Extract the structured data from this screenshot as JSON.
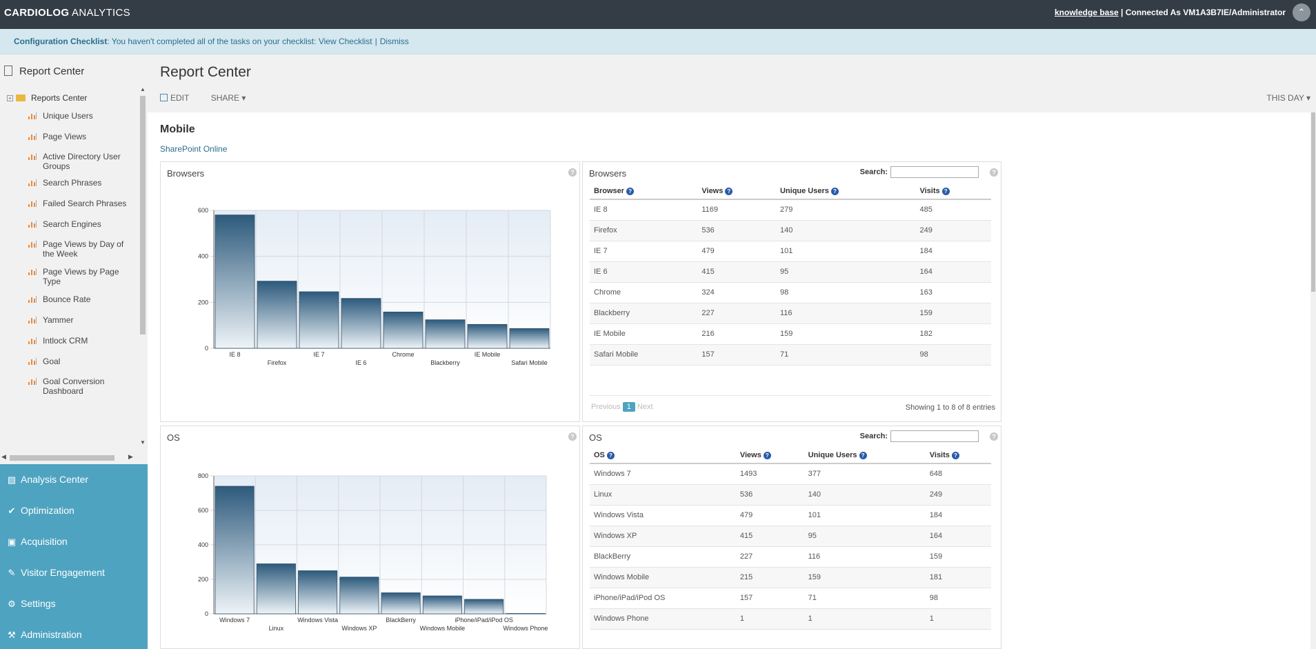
{
  "header": {
    "brand_bold": "CARDIOLOG",
    "brand_light": " ANALYTICS",
    "kb_link": "knowledge base",
    "connected": " | Connected As VM1A3B7IE/Administrator"
  },
  "banner": {
    "label": "Configuration Checklist",
    "message": ": You haven't completed all of the tasks on your checklist: ",
    "view_link": "View Checklist",
    "separator": "|",
    "dismiss_link": "Dismiss"
  },
  "sidebar": {
    "title": "Report Center",
    "root": "Reports Center",
    "items": [
      "Unique Users",
      "Page Views",
      "Active Directory User Groups",
      "Search Phrases",
      "Failed Search Phrases",
      "Search Engines",
      "Page Views by Day of the Week",
      "Page Views by Page Type",
      "Bounce Rate",
      "Yammer",
      "Intlock CRM",
      "Goal",
      "Goal Conversion Dashboard"
    ],
    "nav": [
      {
        "label": "Analysis Center",
        "icon": "bar-chart-icon"
      },
      {
        "label": "Optimization",
        "icon": "check-icon"
      },
      {
        "label": "Acquisition",
        "icon": "cart-icon"
      },
      {
        "label": "Visitor Engagement",
        "icon": "pencil-icon"
      },
      {
        "label": "Settings",
        "icon": "gears-icon"
      },
      {
        "label": "Administration",
        "icon": "wrench-icon"
      }
    ]
  },
  "main": {
    "title": "Report Center",
    "edit": "EDIT",
    "share": "SHARE",
    "period": "THIS DAY",
    "section": "Mobile",
    "site_link": "SharePoint Online",
    "search_label": "Search:",
    "help": "?"
  },
  "browsers_table": {
    "title": "Browsers",
    "columns": [
      "Browser",
      "Views",
      "Unique Users",
      "Visits"
    ],
    "rows": [
      [
        "IE 8",
        "1169",
        "279",
        "485"
      ],
      [
        "Firefox",
        "536",
        "140",
        "249"
      ],
      [
        "IE 7",
        "479",
        "101",
        "184"
      ],
      [
        "IE 6",
        "415",
        "95",
        "164"
      ],
      [
        "Chrome",
        "324",
        "98",
        "163"
      ],
      [
        "Blackberry",
        "227",
        "116",
        "159"
      ],
      [
        "IE Mobile",
        "216",
        "159",
        "182"
      ],
      [
        "Safari Mobile",
        "157",
        "71",
        "98"
      ]
    ],
    "prev": "Previous",
    "page": "1",
    "next": "Next",
    "showing": "Showing 1 to 8 of 8 entries"
  },
  "os_table": {
    "title": "OS",
    "columns": [
      "OS",
      "Views",
      "Unique Users",
      "Visits"
    ],
    "rows": [
      [
        "Windows 7",
        "1493",
        "377",
        "648"
      ],
      [
        "Linux",
        "536",
        "140",
        "249"
      ],
      [
        "Windows Vista",
        "479",
        "101",
        "184"
      ],
      [
        "Windows XP",
        "415",
        "95",
        "164"
      ],
      [
        "BlackBerry",
        "227",
        "116",
        "159"
      ],
      [
        "Windows Mobile",
        "215",
        "159",
        "181"
      ],
      [
        "iPhone/iPad/iPod OS",
        "157",
        "71",
        "98"
      ],
      [
        "Windows Phone",
        "1",
        "1",
        "1"
      ]
    ]
  },
  "chart_data": [
    {
      "type": "bar",
      "title": "Browsers",
      "categories": [
        "IE 8",
        "Firefox",
        "IE 7",
        "IE 6",
        "Chrome",
        "Blackberry",
        "IE Mobile",
        "Safari Mobile"
      ],
      "values": [
        580,
        292,
        246,
        217,
        158,
        124,
        104,
        86
      ],
      "ylim": [
        0,
        600
      ],
      "yticks": [
        0,
        200,
        400,
        600
      ],
      "grid": true
    },
    {
      "type": "bar",
      "title": "OS",
      "categories": [
        "Windows 7",
        "Linux",
        "Windows Vista",
        "Windows XP",
        "BlackBerry",
        "Windows Mobile",
        "iPhone/iPad/iPod OS",
        "Windows Phone"
      ],
      "values": [
        740,
        290,
        250,
        213,
        122,
        104,
        84,
        2
      ],
      "ylim": [
        0,
        800
      ],
      "yticks": [
        0,
        200,
        400,
        600,
        800
      ],
      "grid": true
    }
  ],
  "colors": {
    "topbar": "#343d46",
    "nav": "#4ea3c0",
    "bar_top": "#2d5a7c",
    "bar_bottom": "#eef4f8",
    "link": "#2a6d8f"
  }
}
